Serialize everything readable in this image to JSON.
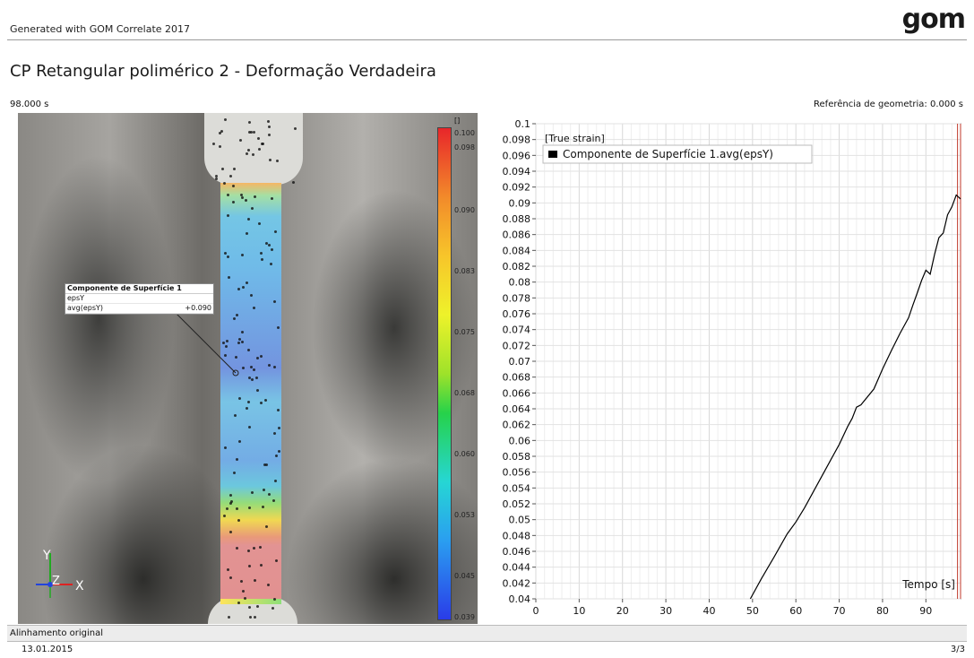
{
  "header": {
    "generated_by": "Generated with GOM Correlate 2017",
    "logo_text": "gom"
  },
  "title": "CP Retangular polimérico 2 - Deformação Verdadeira",
  "time_current": "98.000 s",
  "reference": "Referência de geometria: 0.000 s",
  "callout": {
    "title": "Componente de Superfície 1",
    "row1_label": "epsY",
    "row1_value": "",
    "row2_label": "avg(epsY)",
    "row2_value": "+0.090"
  },
  "axis_triad": {
    "x": "X",
    "y": "Y",
    "z": "Z"
  },
  "colorbar": {
    "unit": "[]",
    "labels": [
      "0.100",
      "0.098",
      "0.090",
      "0.083",
      "0.075",
      "0.068",
      "0.060",
      "0.053",
      "0.045",
      "0.039"
    ],
    "colors": [
      "#e8262a",
      "#f7c52a",
      "#26d24a",
      "#26d6d4",
      "#2a3ce8"
    ]
  },
  "chart_data": {
    "type": "line",
    "title": "[True strain]",
    "xlabel": "Tempo [s]",
    "ylabel": "",
    "xlim": [
      0,
      98
    ],
    "ylim": [
      0.04,
      0.1
    ],
    "x_ticks": [
      0,
      10,
      20,
      30,
      40,
      50,
      60,
      70,
      80,
      90
    ],
    "y_ticks": [
      0.04,
      0.042,
      0.044,
      0.046,
      0.048,
      0.05,
      0.052,
      0.054,
      0.056,
      0.058,
      0.06,
      0.062,
      0.064,
      0.066,
      0.068,
      0.07,
      0.072,
      0.074,
      0.076,
      0.078,
      0.08,
      0.082,
      0.084,
      0.086,
      0.088,
      0.09,
      0.092,
      0.094,
      0.096,
      0.098,
      0.1
    ],
    "y_tick_labels": [
      "0.04",
      "0.042",
      "0.044",
      "0.046",
      "0.048",
      "0.05",
      "0.052",
      "0.054",
      "0.056",
      "0.058",
      "0.06",
      "0.062",
      "0.064",
      "0.066",
      "0.068",
      "0.07",
      "0.072",
      "0.074",
      "0.076",
      "0.078",
      "0.08",
      "0.082",
      "0.084",
      "0.086",
      "0.088",
      "0.09",
      "0.092",
      "0.094",
      "0.096",
      "0.098",
      "0.1"
    ],
    "grid": true,
    "legend_position": "top-left",
    "series": [
      {
        "name": "Componente de Superfície 1.avg(epsY)",
        "color": "#000000",
        "x": [
          49.5,
          52,
          55,
          58,
          60,
          62,
          65,
          68,
          70,
          72,
          73,
          74,
          75,
          78,
          80,
          82,
          84,
          86,
          87,
          88,
          89,
          90,
          91,
          92,
          93,
          94,
          95,
          96,
          97,
          98
        ],
        "y": [
          0.04,
          0.0425,
          0.0453,
          0.0482,
          0.0497,
          0.0515,
          0.0545,
          0.0575,
          0.0595,
          0.0618,
          0.0628,
          0.0642,
          0.0645,
          0.0665,
          0.069,
          0.0713,
          0.0735,
          0.0755,
          0.0771,
          0.0786,
          0.0802,
          0.0815,
          0.081,
          0.0835,
          0.0856,
          0.0862,
          0.0885,
          0.0895,
          0.091,
          0.0905
        ]
      }
    ],
    "marker_lines_x": [
      97.3,
      98.0
    ],
    "marker_color": "#c0392b"
  },
  "status": "Alinhamento original",
  "footer": {
    "date": "13.01.2015",
    "page": "3/3"
  }
}
